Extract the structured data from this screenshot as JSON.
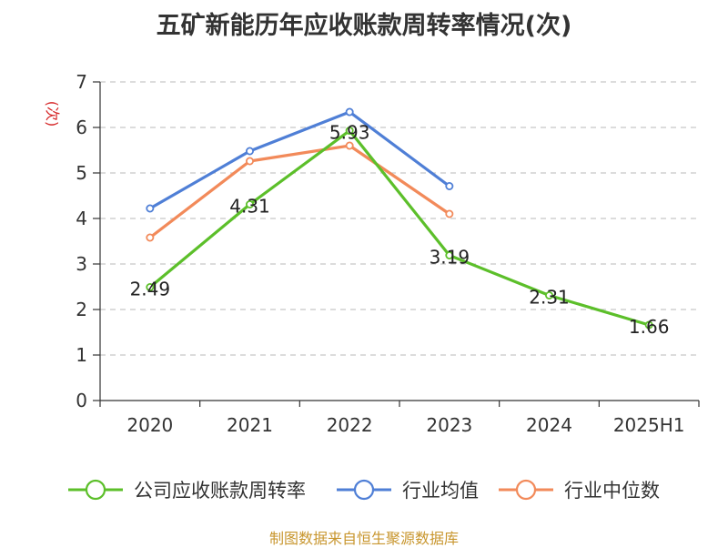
{
  "title": "五矿新能历年应收账款周转率情况(次)",
  "source": "制图数据来自恒生聚源数据库",
  "chart_data": {
    "type": "line",
    "title": "五矿新能历年应收账款周转率情况(次)",
    "ylabel": "(次)",
    "xlabel": "",
    "categories": [
      "2020",
      "2021",
      "2022",
      "2023",
      "2024",
      "2025H1"
    ],
    "ylim": [
      0,
      7
    ],
    "yticks": [
      0,
      1,
      2,
      3,
      4,
      5,
      6,
      7
    ],
    "grid": true,
    "legend_position": "bottom",
    "series": [
      {
        "name": "公司应收账款周转率",
        "color": "#5cbf2a",
        "values": [
          2.49,
          4.31,
          5.93,
          3.19,
          2.31,
          1.66
        ],
        "labels": true
      },
      {
        "name": "行业均值",
        "color": "#4f7fd6",
        "values": [
          4.22,
          5.48,
          6.34,
          4.71,
          null,
          null
        ],
        "labels": false
      },
      {
        "name": "行业中位数",
        "color": "#f28a5a",
        "values": [
          3.58,
          5.26,
          5.6,
          4.1,
          null,
          null
        ],
        "labels": false
      }
    ]
  }
}
